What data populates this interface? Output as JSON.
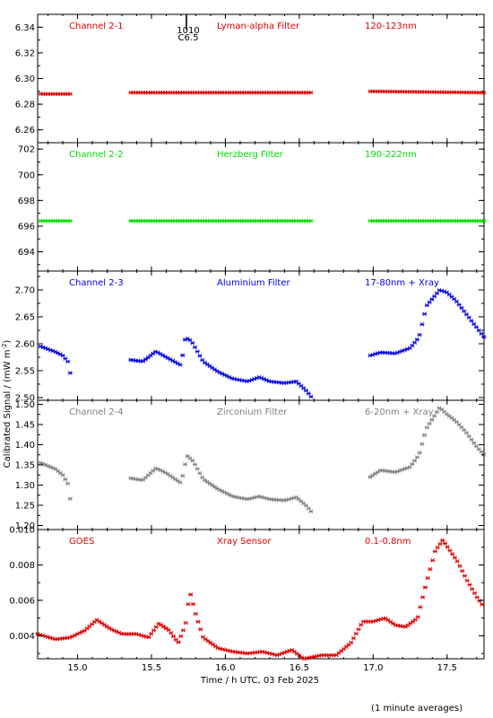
{
  "figure": {
    "ylabel": "Calibrated Signal / (mW m",
    "ylabel_sup": "-2",
    "ylabel_end": ")",
    "xlabel": "Time / h UTC, 03 Feb 2025",
    "footnote": "(1 minute averages)",
    "annotation_top": "1010",
    "annotation_bottom": "C6.5"
  },
  "colors": {
    "red": "#dd0000",
    "green": "#00dd00",
    "blue": "#0000dd",
    "gray": "#808080",
    "axis": "#000000"
  },
  "chart_data": [
    {
      "type": "scatter",
      "panel_labels": [
        "Channel 2-1",
        "Lyman-alpha Filter",
        "120-123nm"
      ],
      "color_key": "red",
      "xlim": [
        14.73,
        17.75
      ],
      "ylim": [
        6.25,
        6.35
      ],
      "xticks": [
        15.0,
        15.5,
        16.0,
        16.5,
        17.0,
        17.5
      ],
      "xtick_labels": [],
      "yticks": [
        6.26,
        6.28,
        6.3,
        6.32,
        6.34
      ],
      "ytick_labels": [
        "6.26",
        "6.28",
        "6.30",
        "6.32",
        "6.34"
      ],
      "segments": [
        {
          "x0": 14.75,
          "x1": 14.96,
          "step": 0.0167,
          "points": [
            [
              14.75,
              6.288
            ],
            [
              14.96,
              6.288
            ]
          ]
        },
        {
          "x0": 15.36,
          "x1": 16.59,
          "step": 0.0167,
          "points": [
            [
              15.36,
              6.289
            ],
            [
              16.59,
              6.289
            ]
          ]
        },
        {
          "x0": 16.98,
          "x1": 17.75,
          "step": 0.0167,
          "points": [
            [
              16.98,
              6.29
            ],
            [
              17.75,
              6.289
            ]
          ]
        }
      ]
    },
    {
      "type": "scatter",
      "panel_labels": [
        "Channel 2-2",
        "Herzberg Filter",
        "190-222nm"
      ],
      "color_key": "green",
      "xlim": [
        14.73,
        17.75
      ],
      "ylim": [
        692.5,
        702.5
      ],
      "xticks": [
        15.0,
        15.5,
        16.0,
        16.5,
        17.0,
        17.5
      ],
      "xtick_labels": [],
      "yticks": [
        694,
        696,
        698,
        700,
        702
      ],
      "ytick_labels": [
        "694",
        "696",
        "698",
        "700",
        "702"
      ],
      "segments": [
        {
          "x0": 14.75,
          "x1": 14.96,
          "step": 0.0167,
          "points": [
            [
              14.75,
              696.4
            ],
            [
              14.96,
              696.4
            ]
          ]
        },
        {
          "x0": 15.36,
          "x1": 16.59,
          "step": 0.0167,
          "points": [
            [
              15.36,
              696.4
            ],
            [
              16.59,
              696.4
            ]
          ]
        },
        {
          "x0": 16.98,
          "x1": 17.75,
          "step": 0.0167,
          "points": [
            [
              16.98,
              696.4
            ],
            [
              17.75,
              696.4
            ]
          ]
        }
      ]
    },
    {
      "type": "scatter",
      "panel_labels": [
        "Channel 2-3",
        "Aluminium Filter",
        "17-80nm + Xray"
      ],
      "color_key": "blue",
      "xlim": [
        14.73,
        17.75
      ],
      "ylim": [
        2.495,
        2.735
      ],
      "xticks": [
        15.0,
        15.5,
        16.0,
        16.5,
        17.0,
        17.5
      ],
      "xtick_labels": [],
      "yticks": [
        2.5,
        2.55,
        2.6,
        2.65,
        2.7
      ],
      "ytick_labels": [
        "2.50",
        "2.55",
        "2.60",
        "2.65",
        "2.70"
      ],
      "segments": [
        {
          "x0": 14.75,
          "x1": 14.96,
          "step": 0.0167,
          "points": [
            [
              14.75,
              2.595
            ],
            [
              14.85,
              2.585
            ],
            [
              14.9,
              2.578
            ],
            [
              14.94,
              2.565
            ],
            [
              14.96,
              2.528
            ]
          ]
        },
        {
          "x0": 15.36,
          "x1": 16.59,
          "step": 0.0167,
          "points": [
            [
              15.36,
              2.57
            ],
            [
              15.44,
              2.567
            ],
            [
              15.48,
              2.575
            ],
            [
              15.53,
              2.586
            ],
            [
              15.6,
              2.575
            ],
            [
              15.7,
              2.56
            ],
            [
              15.73,
              2.612
            ],
            [
              15.77,
              2.605
            ],
            [
              15.85,
              2.567
            ],
            [
              15.95,
              2.548
            ],
            [
              16.05,
              2.535
            ],
            [
              16.15,
              2.53
            ],
            [
              16.23,
              2.538
            ],
            [
              16.3,
              2.53
            ],
            [
              16.4,
              2.527
            ],
            [
              16.48,
              2.53
            ],
            [
              16.55,
              2.512
            ],
            [
              16.59,
              2.498
            ]
          ]
        },
        {
          "x0": 16.98,
          "x1": 17.75,
          "step": 0.0167,
          "points": [
            [
              16.98,
              2.578
            ],
            [
              17.05,
              2.584
            ],
            [
              17.15,
              2.582
            ],
            [
              17.25,
              2.592
            ],
            [
              17.31,
              2.612
            ],
            [
              17.36,
              2.67
            ],
            [
              17.45,
              2.7
            ],
            [
              17.5,
              2.695
            ],
            [
              17.56,
              2.68
            ],
            [
              17.63,
              2.655
            ],
            [
              17.7,
              2.63
            ],
            [
              17.75,
              2.612
            ]
          ]
        }
      ]
    },
    {
      "type": "scatter",
      "panel_labels": [
        "Channel 2-4",
        "Zirconium Filter",
        "6-20nm + Xray"
      ],
      "color_key": "gray",
      "xlim": [
        14.73,
        17.75
      ],
      "ylim": [
        1.19,
        1.51
      ],
      "xticks": [
        15.0,
        15.5,
        16.0,
        16.5,
        17.0,
        17.5
      ],
      "xtick_labels": [],
      "yticks": [
        1.2,
        1.25,
        1.3,
        1.35,
        1.4,
        1.45,
        1.5
      ],
      "ytick_labels": [
        "1.20",
        "1.25",
        "1.30",
        "1.35",
        "1.40",
        "1.45",
        "1.50"
      ],
      "segments": [
        {
          "x0": 14.75,
          "x1": 14.96,
          "step": 0.0167,
          "points": [
            [
              14.75,
              1.355
            ],
            [
              14.85,
              1.34
            ],
            [
              14.9,
              1.325
            ],
            [
              14.94,
              1.3
            ],
            [
              14.96,
              1.235
            ]
          ]
        },
        {
          "x0": 15.36,
          "x1": 16.59,
          "step": 0.0167,
          "points": [
            [
              15.36,
              1.317
            ],
            [
              15.44,
              1.312
            ],
            [
              15.48,
              1.325
            ],
            [
              15.53,
              1.342
            ],
            [
              15.6,
              1.33
            ],
            [
              15.7,
              1.305
            ],
            [
              15.74,
              1.373
            ],
            [
              15.78,
              1.36
            ],
            [
              15.85,
              1.315
            ],
            [
              15.95,
              1.29
            ],
            [
              16.05,
              1.272
            ],
            [
              16.15,
              1.265
            ],
            [
              16.23,
              1.272
            ],
            [
              16.3,
              1.265
            ],
            [
              16.4,
              1.262
            ],
            [
              16.48,
              1.27
            ],
            [
              16.55,
              1.248
            ],
            [
              16.59,
              1.23
            ]
          ]
        },
        {
          "x0": 16.98,
          "x1": 17.75,
          "step": 0.0167,
          "points": [
            [
              16.98,
              1.32
            ],
            [
              17.05,
              1.337
            ],
            [
              17.15,
              1.332
            ],
            [
              17.25,
              1.345
            ],
            [
              17.31,
              1.375
            ],
            [
              17.36,
              1.44
            ],
            [
              17.45,
              1.492
            ],
            [
              17.5,
              1.475
            ],
            [
              17.56,
              1.458
            ],
            [
              17.63,
              1.43
            ],
            [
              17.7,
              1.395
            ],
            [
              17.75,
              1.375
            ]
          ]
        }
      ]
    },
    {
      "type": "scatter",
      "panel_labels": [
        "GOES",
        "Xray Sensor",
        "0.1-0.8nm"
      ],
      "color_key": "red",
      "xlim": [
        14.73,
        17.75
      ],
      "ylim": [
        0.0027,
        0.01
      ],
      "xticks": [
        15.0,
        15.5,
        16.0,
        16.5,
        17.0,
        17.5
      ],
      "xtick_labels": [
        "15.0",
        "15.5",
        "16.0",
        "16.5",
        "17.0",
        "17.5"
      ],
      "yticks": [
        0.004,
        0.006,
        0.008,
        0.01
      ],
      "ytick_labels": [
        "0.004",
        "0.006",
        "0.008",
        "0.010"
      ],
      "segments": [
        {
          "x0": 14.73,
          "x1": 17.75,
          "step": 0.0167,
          "points": [
            [
              14.73,
              0.0041
            ],
            [
              14.85,
              0.0038
            ],
            [
              14.95,
              0.0039
            ],
            [
              15.05,
              0.0043
            ],
            [
              15.13,
              0.0049
            ],
            [
              15.22,
              0.0044
            ],
            [
              15.3,
              0.0041
            ],
            [
              15.4,
              0.0041
            ],
            [
              15.48,
              0.0039
            ],
            [
              15.55,
              0.0047
            ],
            [
              15.62,
              0.0043
            ],
            [
              15.68,
              0.0036
            ],
            [
              15.73,
              0.0046
            ],
            [
              15.76,
              0.0065
            ],
            [
              15.8,
              0.0052
            ],
            [
              15.85,
              0.0039
            ],
            [
              15.95,
              0.0033
            ],
            [
              16.05,
              0.0031
            ],
            [
              16.15,
              0.003
            ],
            [
              16.25,
              0.0031
            ],
            [
              16.35,
              0.0029
            ],
            [
              16.45,
              0.0032
            ],
            [
              16.53,
              0.0027
            ],
            [
              16.65,
              0.0029
            ],
            [
              16.75,
              0.0029
            ],
            [
              16.85,
              0.0036
            ],
            [
              16.93,
              0.0048
            ],
            [
              17.0,
              0.0048
            ],
            [
              17.08,
              0.005
            ],
            [
              17.15,
              0.0046
            ],
            [
              17.22,
              0.0045
            ],
            [
              17.3,
              0.005
            ],
            [
              17.36,
              0.007
            ],
            [
              17.42,
              0.0088
            ],
            [
              17.47,
              0.0094
            ],
            [
              17.52,
              0.0088
            ],
            [
              17.57,
              0.0082
            ],
            [
              17.63,
              0.0072
            ],
            [
              17.7,
              0.0062
            ],
            [
              17.75,
              0.0056
            ]
          ]
        }
      ]
    }
  ]
}
